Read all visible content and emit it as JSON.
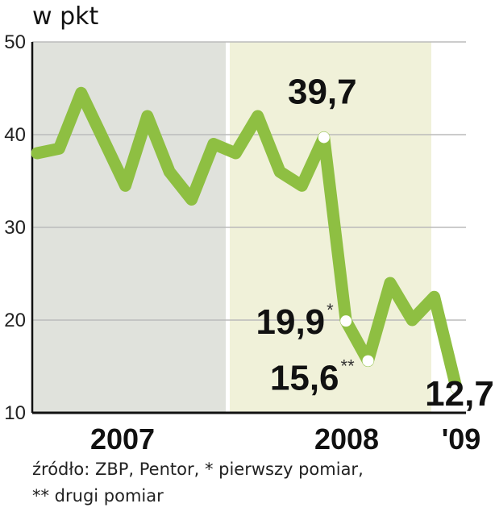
{
  "chart_data": {
    "type": "line",
    "ylabel": "w pkt",
    "ylim": [
      10,
      50
    ],
    "yticks": [
      50,
      40,
      30,
      20,
      10
    ],
    "grid": true,
    "period_labels": [
      "2007",
      "2008",
      "'09"
    ],
    "series": [
      {
        "values": [
          38,
          38.5,
          44.5,
          39.5,
          34.5,
          42,
          36,
          33,
          39,
          38,
          42,
          36,
          34.5,
          39.7,
          19.9,
          15.6,
          24,
          20,
          22.5,
          12.7
        ]
      }
    ],
    "highlighted": [
      {
        "index": 13,
        "label": "39,7",
        "mark": ""
      },
      {
        "index": 14,
        "label": "19,9",
        "mark": "*"
      },
      {
        "index": 15,
        "label": "15,6",
        "mark": "**"
      },
      {
        "index": 19,
        "label": "12,7",
        "mark": ""
      }
    ],
    "colors": {
      "line": "#8ebf42",
      "band_2007": "#e0e2dc",
      "band_2008": "#f0f1d9",
      "grid": "#bbbbbb",
      "axis": "#111111"
    }
  },
  "source_line1": "źródło: ZBP, Pentor, * pierwszy pomiar,",
  "source_line2": "** drugi pomiar"
}
